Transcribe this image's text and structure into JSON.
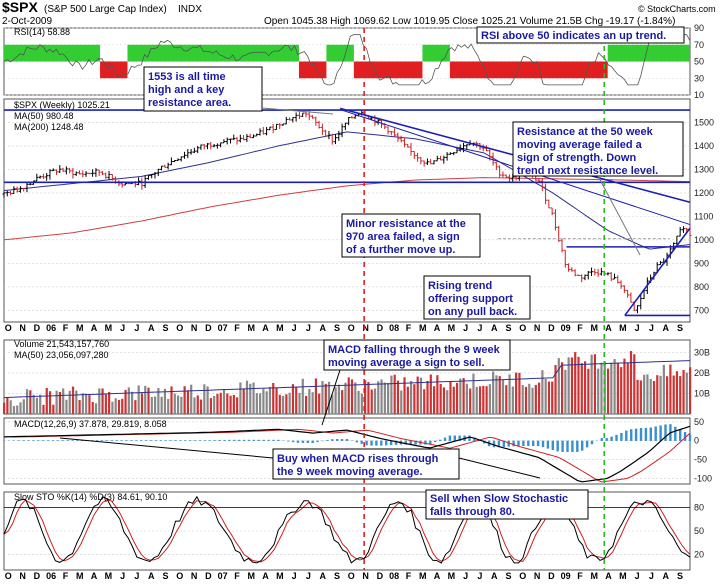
{
  "header": {
    "symbol": "$SPX",
    "name": "(S&P 500 Large Cap Index)",
    "exchange": "INDX",
    "date": "2-Oct-2009",
    "quote": "Open 1045.38   High 1069.62   Low 1019.95   Close 1025.21   Volume 21.5B   Chg -19.17 (-1.84%)",
    "brand": "© StockCharts.com"
  },
  "colors": {
    "trendline": "#1c1fb4",
    "ma50": "#303090",
    "ma200": "#d04040",
    "rsi_up": "#33cc33",
    "rsi_down": "#e02020",
    "vline_red": "#dd2222",
    "vline_green": "#22bb22",
    "volume_up": "#888888",
    "volume_down": "#cc3333",
    "macd_hist": "#3a8fd0",
    "stoch_k": "#000000",
    "stoch_d": "#cc2222"
  },
  "chart_data": [
    {
      "type": "line",
      "panel": "rsi",
      "title": "RSI(14) 58.88",
      "ylim": [
        10,
        90
      ],
      "ticks": [
        "90",
        "70",
        "50",
        "30",
        "10"
      ],
      "rsi_regimes": [
        {
          "from": 0,
          "to": 0.14,
          "side": "up"
        },
        {
          "from": 0.14,
          "to": 0.18,
          "side": "down"
        },
        {
          "from": 0.18,
          "to": 0.43,
          "side": "up"
        },
        {
          "from": 0.43,
          "to": 0.47,
          "side": "down"
        },
        {
          "from": 0.47,
          "to": 0.51,
          "side": "up"
        },
        {
          "from": 0.51,
          "to": 0.61,
          "side": "down"
        },
        {
          "from": 0.61,
          "to": 0.65,
          "side": "up"
        },
        {
          "from": 0.65,
          "to": 0.88,
          "side": "down"
        },
        {
          "from": 0.88,
          "to": 1.0,
          "side": "up"
        }
      ]
    },
    {
      "type": "line",
      "panel": "price",
      "title": "$SPX (Weekly) 1025.21",
      "series": [
        {
          "name": "MA(50) 980.48"
        },
        {
          "name": "MA(200) 1248.48"
        }
      ],
      "ylim": [
        650,
        1600
      ],
      "ticks": [
        "1500",
        "1400",
        "1300",
        "1200",
        "1100",
        "1000",
        "900",
        "800",
        "700"
      ],
      "price_path": [
        [
          0,
          1195
        ],
        [
          0.02,
          1215
        ],
        [
          0.05,
          1265
        ],
        [
          0.08,
          1300
        ],
        [
          0.11,
          1280
        ],
        [
          0.14,
          1290
        ],
        [
          0.17,
          1240
        ],
        [
          0.2,
          1240
        ],
        [
          0.23,
          1310
        ],
        [
          0.26,
          1360
        ],
        [
          0.29,
          1400
        ],
        [
          0.32,
          1420
        ],
        [
          0.35,
          1430
        ],
        [
          0.38,
          1460
        ],
        [
          0.41,
          1510
        ],
        [
          0.44,
          1540
        ],
        [
          0.46,
          1480
        ],
        [
          0.48,
          1420
        ],
        [
          0.5,
          1505
        ],
        [
          0.52,
          1550
        ],
        [
          0.545,
          1500
        ],
        [
          0.56,
          1470
        ],
        [
          0.59,
          1380
        ],
        [
          0.62,
          1320
        ],
        [
          0.65,
          1370
        ],
        [
          0.68,
          1420
        ],
        [
          0.7,
          1390
        ],
        [
          0.72,
          1290
        ],
        [
          0.74,
          1260
        ],
        [
          0.76,
          1290
        ],
        [
          0.78,
          1250
        ],
        [
          0.8,
          1100
        ],
        [
          0.82,
          880
        ],
        [
          0.84,
          840
        ],
        [
          0.86,
          870
        ],
        [
          0.88,
          850
        ],
        [
          0.9,
          810
        ],
        [
          0.92,
          690
        ],
        [
          0.935,
          800
        ],
        [
          0.95,
          880
        ],
        [
          0.965,
          920
        ],
        [
          0.98,
          1000
        ],
        [
          0.99,
          1060
        ],
        [
          1.0,
          1025
        ]
      ],
      "ma50_path": [
        [
          0,
          1210
        ],
        [
          0.1,
          1240
        ],
        [
          0.2,
          1270
        ],
        [
          0.3,
          1330
        ],
        [
          0.4,
          1400
        ],
        [
          0.5,
          1460
        ],
        [
          0.6,
          1430
        ],
        [
          0.7,
          1370
        ],
        [
          0.8,
          1200
        ],
        [
          0.88,
          1040
        ],
        [
          0.94,
          960
        ],
        [
          1.0,
          980
        ]
      ],
      "ma200_path": [
        [
          0,
          1000
        ],
        [
          0.1,
          1030
        ],
        [
          0.2,
          1080
        ],
        [
          0.3,
          1140
        ],
        [
          0.4,
          1190
        ],
        [
          0.5,
          1230
        ],
        [
          0.6,
          1255
        ],
        [
          0.7,
          1265
        ],
        [
          0.8,
          1260
        ],
        [
          0.9,
          1255
        ],
        [
          1.0,
          1248
        ]
      ],
      "annotations": [
        "1553 is all time high and a key resistance area.",
        "Resistance at the 50 week moving average failed a sign of strength. Down trend next resistance level.",
        "Minor resistance at the 970 area failed, a sign of a further move up.",
        "Rising trend offering support on any pull back."
      ]
    },
    {
      "type": "bar",
      "panel": "volume",
      "title": "Volume 21,543,157,760",
      "series": [
        {
          "name": "MA(50) 23,056,097,280"
        }
      ],
      "ticks": [
        "30B",
        "20B",
        "10B"
      ]
    },
    {
      "type": "line",
      "panel": "macd",
      "title": "MACD(12,26,9) 37.878, 29.819, 8.058",
      "ticks": [
        "50",
        "0",
        "-50",
        "-100"
      ],
      "annotations": [
        "MACD falling through the 9 week moving average a sign to sell.",
        "Buy when MACD rises through the 9 week moving average."
      ]
    },
    {
      "type": "line",
      "panel": "stochastic",
      "title": "Slow STO %K(14) %D(3) 84.61, 90.10",
      "ticks": [
        "80",
        "50",
        "20"
      ],
      "annotations": [
        "Sell when Slow Stochastic falls through 80."
      ]
    }
  ],
  "x_axis": {
    "months": [
      "O",
      "N",
      "D",
      "06",
      "F",
      "M",
      "A",
      "M",
      "J",
      "J",
      "A",
      "S",
      "O",
      "N",
      "D",
      "07",
      "F",
      "M",
      "A",
      "M",
      "J",
      "J",
      "A",
      "S",
      "O",
      "N",
      "D",
      "08",
      "F",
      "M",
      "A",
      "M",
      "J",
      "J",
      "A",
      "S",
      "O",
      "N",
      "D",
      "09",
      "F",
      "M",
      "A",
      "M",
      "J",
      "J",
      "A",
      "S"
    ]
  },
  "notes": {
    "rsi": "RSI above 50 indicates an up trend."
  }
}
